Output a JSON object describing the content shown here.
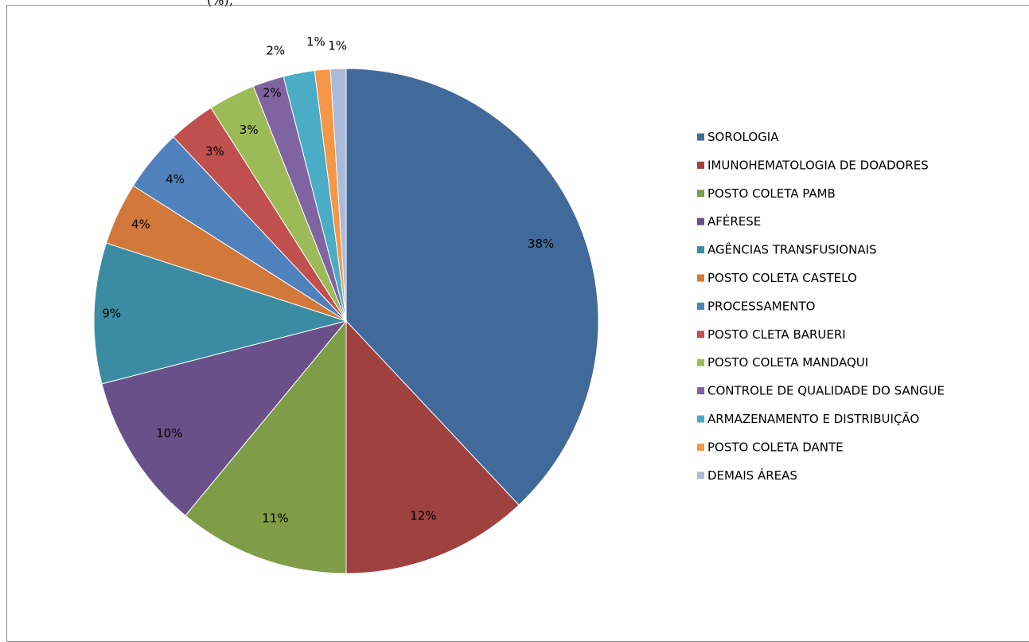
{
  "header": {
    "partial_text": "(%),"
  },
  "chart_data": {
    "type": "pie",
    "categories": [
      "SOROLOGIA",
      "IMUNOHEMATOLOGIA DE DOADORES",
      "POSTO COLETA PAMB",
      "AFÉRESE",
      "AGÊNCIAS TRANSFUSIONAIS",
      "POSTO COLETA CASTELO",
      "PROCESSAMENTO",
      "POSTO CLETA BARUERI",
      "POSTO COLETA MANDAQUI",
      "CONTROLE DE QUALIDADE DO SANGUE",
      "ARMAZENAMENTO E DISTRIBUIÇÃO",
      "POSTO COLETA DANTE",
      "DEMAIS ÁREAS"
    ],
    "values": [
      38,
      12,
      11,
      10,
      9,
      4,
      4,
      3,
      3,
      2,
      2,
      1,
      1
    ],
    "data_labels": [
      "38%",
      "12%",
      "11%",
      "10%",
      "9%",
      "4%",
      "4%",
      "3%",
      "3%",
      "2%",
      "2%",
      "1%",
      "1%"
    ],
    "colors": [
      "#416A9B",
      "#9E413F",
      "#7F9C47",
      "#6A5088",
      "#3B8CA3",
      "#D1783A",
      "#4F81BD",
      "#C0504D",
      "#9BBB59",
      "#8064A2",
      "#4BACC6",
      "#F79646",
      "#AABAD7"
    ],
    "title": "",
    "legend_position": "right"
  }
}
